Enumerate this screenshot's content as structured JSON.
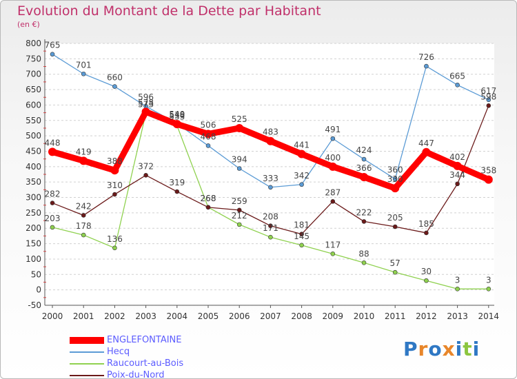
{
  "title": "Evolution du Montant de la Dette par Habitant",
  "subtitle": "(en €)",
  "logo_text": "Proxiti",
  "chart_data": {
    "type": "line",
    "title": "Evolution du Montant de la Dette par Habitant",
    "subtitle": "(en €)",
    "x": [
      "2000",
      "2001",
      "2002",
      "2003",
      "2004",
      "2005",
      "2006",
      "2007",
      "2008",
      "2009",
      "2010",
      "2011",
      "2012",
      "2013",
      "2014"
    ],
    "ylim": [
      -50,
      800
    ],
    "yticks": [
      "-50",
      "0",
      "50",
      "100",
      "150",
      "200",
      "250",
      "300",
      "350",
      "400",
      "450",
      "500",
      "550",
      "600",
      "650",
      "700",
      "750",
      "800"
    ],
    "grid": "horizontal dashed",
    "legend_position": "bottom-left",
    "series": [
      {
        "name": "ENGLEFONTAINE",
        "color": "#ff0000",
        "values": [
          448,
          419,
          388,
          578,
          538,
          506,
          525,
          483,
          441,
          400,
          366,
          330,
          447,
          402,
          358
        ],
        "labels": [
          "448",
          "419",
          "388",
          "578",
          "538",
          "506",
          "525",
          "483",
          "441",
          "400",
          "366",
          "330",
          "447",
          "402",
          "358"
        ]
      },
      {
        "name": "Hecq",
        "color": "#5b9bd5",
        "values": [
          765,
          701,
          660,
          596,
          540,
          468,
          394,
          333,
          342,
          491,
          424,
          360,
          726,
          665,
          617
        ],
        "labels": [
          "765",
          "701",
          "660",
          "596",
          "540",
          "468",
          "394",
          "333",
          "342",
          "491",
          "424",
          "360",
          "726",
          "665",
          "617"
        ]
      },
      {
        "name": "Raucourt-au-Bois",
        "color": "#8fd14f",
        "values": [
          203,
          178,
          136,
          573,
          533,
          268,
          212,
          171,
          145,
          117,
          88,
          57,
          30,
          3,
          3
        ],
        "labels": [
          "203",
          "178",
          "136",
          "573",
          "533",
          "268",
          "212",
          "171",
          "145",
          "117",
          "88",
          "57",
          "30",
          "3",
          "3"
        ]
      },
      {
        "name": "Poix-du-Nord",
        "color": "#6b1a1a",
        "values": [
          282,
          242,
          310,
          372,
          319,
          268,
          259,
          208,
          181,
          287,
          222,
          205,
          185,
          344,
          598
        ],
        "labels": [
          "282",
          "242",
          "310",
          "372",
          "319",
          "268",
          "259",
          "208",
          "181",
          "287",
          "222",
          "205",
          "185",
          "344",
          "598"
        ]
      }
    ]
  }
}
